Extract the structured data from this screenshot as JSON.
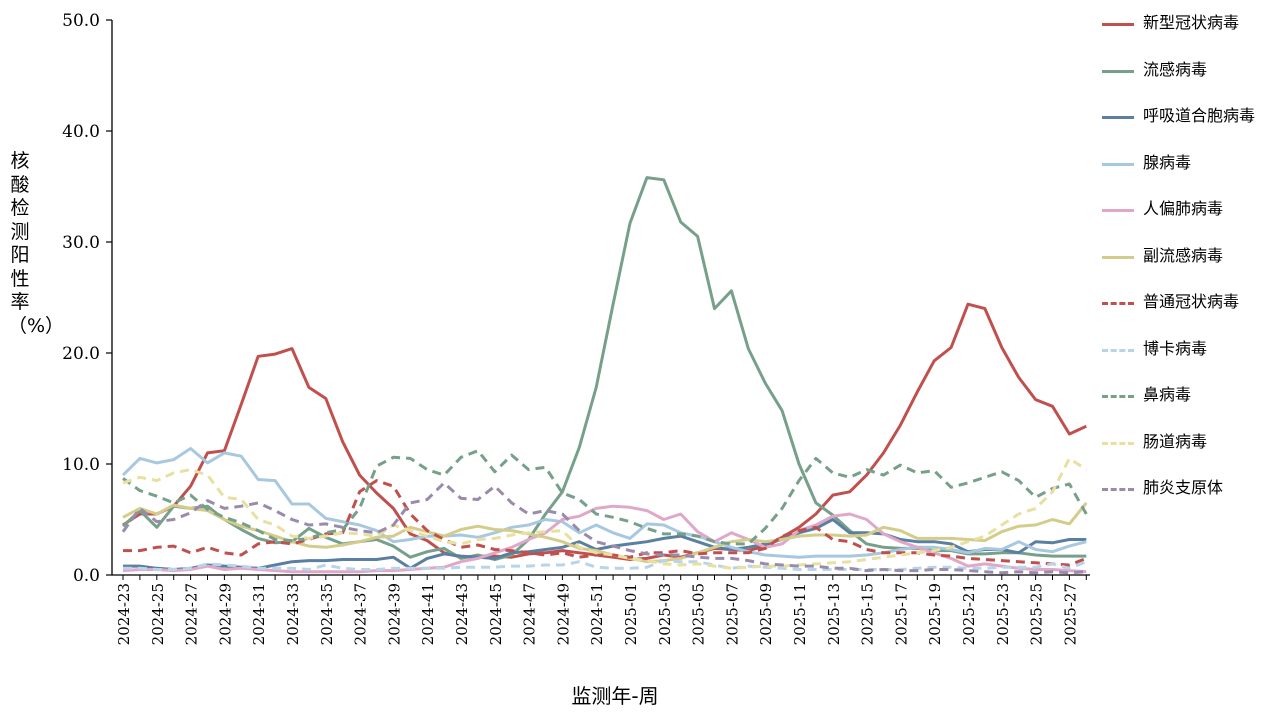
{
  "chart_data": {
    "type": "line",
    "xlabel": "监测年-周",
    "ylabel": "核酸检测阳性率（%）",
    "ylim": [
      0,
      50
    ],
    "yticks": [
      "0.0",
      "10.0",
      "20.0",
      "30.0",
      "40.0",
      "50.0"
    ],
    "grid": false,
    "legend_position": "right",
    "x": [
      "2024-23",
      "2024-24",
      "2024-25",
      "2024-26",
      "2024-27",
      "2024-28",
      "2024-29",
      "2024-30",
      "2024-31",
      "2024-32",
      "2024-33",
      "2024-34",
      "2024-35",
      "2024-36",
      "2024-37",
      "2024-38",
      "2024-39",
      "2024-40",
      "2024-41",
      "2024-42",
      "2024-43",
      "2024-44",
      "2024-45",
      "2024-46",
      "2024-47",
      "2024-48",
      "2024-49",
      "2024-50",
      "2024-51",
      "2024-52",
      "2025-01",
      "2025-02",
      "2025-03",
      "2025-04",
      "2025-05",
      "2025-06",
      "2025-07",
      "2025-08",
      "2025-09",
      "2025-10",
      "2025-11",
      "2025-12",
      "2025-13",
      "2025-14",
      "2025-15",
      "2025-16",
      "2025-17",
      "2025-18",
      "2025-19",
      "2025-20",
      "2025-21",
      "2025-22",
      "2025-23",
      "2025-24",
      "2025-25",
      "2025-26",
      "2025-27",
      "2025-28"
    ],
    "xticks_shown": [
      "2024-23",
      "2024-25",
      "2024-27",
      "2024-29",
      "2024-31",
      "2024-33",
      "2024-35",
      "2024-37",
      "2024-39",
      "2024-41",
      "2024-43",
      "2024-45",
      "2024-47",
      "2024-49",
      "2024-51",
      "2025-01",
      "2025-03",
      "2025-05",
      "2025-07",
      "2025-09",
      "2025-11",
      "2025-13",
      "2025-15",
      "2025-17",
      "2025-19",
      "2025-21",
      "2025-23",
      "2025-25",
      "2025-27"
    ],
    "series": [
      {
        "name": "新型冠状病毒",
        "color": "#c0504d",
        "style": "solid",
        "values": [
          4.5,
          5.5,
          5.5,
          6.2,
          8.0,
          11.0,
          11.2,
          15.4,
          19.7,
          19.9,
          20.4,
          16.9,
          15.9,
          12.0,
          9.0,
          7.4,
          6.0,
          3.7,
          3.1,
          2.0,
          1.6,
          1.7,
          1.7,
          1.6,
          1.9,
          2.0,
          2.2,
          2.0,
          1.8,
          1.6,
          1.4,
          1.5,
          1.8,
          1.6,
          2.0,
          2.4,
          2.3,
          2.2,
          2.6,
          3.4,
          4.3,
          5.5,
          7.2,
          7.5,
          9.0,
          11.0,
          13.5,
          16.5,
          19.3,
          20.5,
          24.4,
          24.0,
          20.5,
          17.8,
          15.8,
          15.2,
          12.7,
          13.4
        ]
      },
      {
        "name": "流感病毒",
        "color": "#76a08a",
        "style": "solid",
        "values": [
          4.4,
          5.8,
          4.3,
          6.2,
          6.0,
          6.2,
          5.0,
          4.1,
          3.3,
          2.9,
          3.0,
          4.2,
          3.4,
          2.8,
          3.0,
          3.2,
          2.6,
          1.6,
          2.1,
          2.4,
          1.5,
          1.8,
          1.4,
          1.8,
          3.2,
          5.5,
          7.5,
          11.5,
          16.9,
          24.4,
          31.7,
          35.8,
          35.6,
          31.8,
          30.5,
          24.0,
          25.6,
          20.4,
          17.3,
          14.8,
          10.0,
          6.5,
          5.4,
          4.0,
          2.8,
          2.5,
          2.4,
          2.4,
          2.2,
          2.2,
          1.9,
          1.9,
          2.0,
          2.0,
          1.8,
          1.7,
          1.7,
          1.7
        ]
      },
      {
        "name": "呼吸道合胞病毒",
        "color": "#5a7fa0",
        "style": "solid",
        "values": [
          0.8,
          0.8,
          0.6,
          0.5,
          0.6,
          0.9,
          0.8,
          0.7,
          0.6,
          0.9,
          1.2,
          1.3,
          1.3,
          1.4,
          1.4,
          1.4,
          1.6,
          0.6,
          1.5,
          1.9,
          1.7,
          1.6,
          1.5,
          2.0,
          2.1,
          2.3,
          2.5,
          3.0,
          2.3,
          2.6,
          2.8,
          3.0,
          3.3,
          3.5,
          3.0,
          2.5,
          2.3,
          2.5,
          2.8,
          3.2,
          3.8,
          4.2,
          5.0,
          3.8,
          3.8,
          3.7,
          3.2,
          3.0,
          3.0,
          2.8,
          2.1,
          2.3,
          2.3,
          2.0,
          3.0,
          2.9,
          3.2,
          3.2
        ]
      },
      {
        "name": "腺病毒",
        "color": "#a8c8e0",
        "style": "solid",
        "values": [
          9.0,
          10.5,
          10.1,
          10.4,
          11.4,
          10.1,
          11.0,
          10.7,
          8.6,
          8.5,
          6.4,
          6.4,
          5.1,
          4.8,
          4.5,
          4.0,
          3.0,
          3.2,
          3.5,
          3.5,
          3.6,
          3.4,
          3.8,
          4.3,
          4.5,
          5.0,
          4.8,
          3.8,
          4.5,
          3.8,
          3.3,
          4.6,
          4.5,
          3.8,
          3.5,
          3.0,
          2.5,
          2.1,
          1.8,
          1.7,
          1.6,
          1.7,
          1.7,
          1.7,
          1.8,
          2.0,
          2.3,
          2.5,
          2.5,
          2.3,
          2.0,
          2.4,
          2.3,
          3.0,
          2.3,
          2.1,
          2.6,
          3.0
        ]
      },
      {
        "name": "人偏肺病毒",
        "color": "#e0a8c8",
        "style": "solid",
        "values": [
          0.4,
          0.5,
          0.5,
          0.4,
          0.5,
          0.8,
          0.5,
          0.6,
          0.5,
          0.4,
          0.3,
          0.3,
          0.3,
          0.3,
          0.3,
          0.4,
          0.4,
          0.5,
          0.6,
          0.7,
          1.2,
          1.5,
          2.0,
          2.5,
          3.2,
          3.8,
          5.0,
          5.3,
          6.0,
          6.2,
          6.1,
          5.8,
          5.0,
          5.5,
          3.9,
          3.0,
          3.8,
          3.2,
          2.5,
          2.8,
          4.0,
          4.5,
          5.3,
          5.5,
          5.0,
          3.7,
          3.0,
          2.5,
          2.0,
          1.5,
          0.8,
          1.0,
          0.8,
          0.6,
          0.5,
          0.5,
          0.4,
          0.3
        ]
      },
      {
        "name": "副流感病毒",
        "color": "#d4cc8a",
        "style": "solid",
        "values": [
          5.2,
          6.0,
          5.5,
          6.3,
          6.0,
          5.8,
          5.0,
          4.4,
          4.0,
          3.5,
          3.0,
          2.6,
          2.5,
          2.7,
          3.0,
          3.4,
          3.5,
          4.3,
          3.9,
          3.5,
          4.1,
          4.4,
          4.1,
          4.0,
          3.7,
          3.4,
          3.0,
          2.4,
          2.2,
          1.8,
          1.5,
          1.2,
          1.3,
          1.5,
          2.0,
          2.5,
          3.0,
          3.2,
          3.0,
          3.2,
          3.5,
          3.6,
          3.6,
          3.5,
          3.6,
          4.3,
          4.0,
          3.3,
          3.3,
          3.3,
          3.2,
          3.1,
          3.9,
          4.4,
          4.5,
          5.0,
          4.6,
          6.5
        ]
      },
      {
        "name": "普通冠状病毒",
        "color": "#c0504d",
        "style": "dashed",
        "values": [
          2.2,
          2.2,
          2.5,
          2.6,
          2.0,
          2.5,
          2.0,
          1.8,
          2.8,
          3.0,
          2.8,
          3.2,
          3.7,
          3.8,
          7.5,
          8.5,
          8.0,
          5.5,
          4.0,
          3.2,
          2.5,
          2.7,
          2.3,
          2.2,
          2.0,
          1.8,
          2.0,
          1.6,
          1.8,
          1.8,
          1.6,
          2.0,
          2.0,
          2.2,
          1.9,
          2.0,
          2.0,
          2.0,
          2.4,
          3.5,
          4.0,
          4.3,
          3.2,
          3.0,
          2.3,
          2.0,
          2.0,
          2.0,
          1.8,
          1.7,
          1.5,
          1.4,
          1.3,
          1.2,
          1.1,
          1.0,
          0.9,
          1.5
        ]
      },
      {
        "name": "博卡病毒",
        "color": "#b8d4ea",
        "style": "dashed",
        "values": [
          0.6,
          0.6,
          0.5,
          0.5,
          0.6,
          1.0,
          0.9,
          0.8,
          0.6,
          0.6,
          0.6,
          0.5,
          0.9,
          0.6,
          0.5,
          0.5,
          0.6,
          0.6,
          0.6,
          0.6,
          0.7,
          0.7,
          0.7,
          0.8,
          0.8,
          0.9,
          0.9,
          1.2,
          0.7,
          0.6,
          0.6,
          0.7,
          1.3,
          1.2,
          1.2,
          0.9,
          0.6,
          0.8,
          0.7,
          0.6,
          0.5,
          0.5,
          0.5,
          0.5,
          0.5,
          0.5,
          0.5,
          0.6,
          0.7,
          0.7,
          0.6,
          0.6,
          0.7,
          0.7,
          0.7,
          1.0,
          0.6,
          1.2
        ]
      },
      {
        "name": "鼻病毒",
        "color": "#76a08a",
        "style": "dashed",
        "values": [
          8.7,
          7.6,
          7.1,
          6.5,
          7.2,
          5.9,
          5.2,
          4.7,
          4.0,
          3.2,
          3.1,
          3.3,
          3.8,
          4.1,
          6.0,
          9.8,
          10.6,
          10.5,
          9.5,
          9.0,
          10.6,
          11.2,
          9.3,
          10.8,
          9.5,
          9.7,
          7.4,
          6.8,
          5.5,
          5.2,
          4.8,
          4.2,
          3.7,
          3.7,
          3.5,
          3.0,
          2.8,
          2.8,
          4.2,
          6.0,
          8.5,
          10.5,
          9.2,
          8.8,
          9.5,
          9.0,
          9.9,
          9.2,
          9.4,
          7.9,
          8.3,
          8.8,
          9.3,
          8.5,
          7.0,
          7.8,
          8.2,
          5.5
        ]
      },
      {
        "name": "肠道病毒",
        "color": "#e8e0a0",
        "style": "dashed",
        "values": [
          8.3,
          8.8,
          8.5,
          9.2,
          9.5,
          9.0,
          7.0,
          6.8,
          5.0,
          4.5,
          3.5,
          3.3,
          3.5,
          3.8,
          3.7,
          3.5,
          4.5,
          4.0,
          3.5,
          3.0,
          2.8,
          3.2,
          3.3,
          3.6,
          3.8,
          3.9,
          4.0,
          2.5,
          2.0,
          1.8,
          1.5,
          1.3,
          1.0,
          0.9,
          1.0,
          0.8,
          0.6,
          0.7,
          0.8,
          0.8,
          0.9,
          1.0,
          1.1,
          1.2,
          1.4,
          1.6,
          1.8,
          2.0,
          2.2,
          2.5,
          3.0,
          3.5,
          4.5,
          5.5,
          6.0,
          7.5,
          10.5,
          9.5
        ]
      },
      {
        "name": "肺炎支原体",
        "color": "#9a8aac",
        "style": "dashed",
        "values": [
          3.9,
          6.0,
          4.8,
          5.0,
          5.6,
          6.7,
          6.0,
          6.2,
          6.5,
          5.8,
          5.0,
          4.5,
          4.6,
          4.3,
          4.0,
          3.8,
          4.5,
          6.5,
          6.8,
          8.3,
          6.9,
          6.8,
          8.0,
          6.5,
          5.5,
          5.8,
          5.5,
          4.0,
          3.0,
          2.6,
          2.2,
          1.9,
          1.8,
          1.8,
          1.6,
          1.5,
          1.5,
          1.3,
          1.0,
          0.9,
          0.8,
          0.8,
          0.6,
          0.6,
          0.4,
          0.5,
          0.4,
          0.4,
          0.5,
          0.5,
          0.4,
          0.3,
          0.2,
          0.3,
          0.2,
          0.3,
          0.2,
          0.3
        ]
      }
    ]
  }
}
